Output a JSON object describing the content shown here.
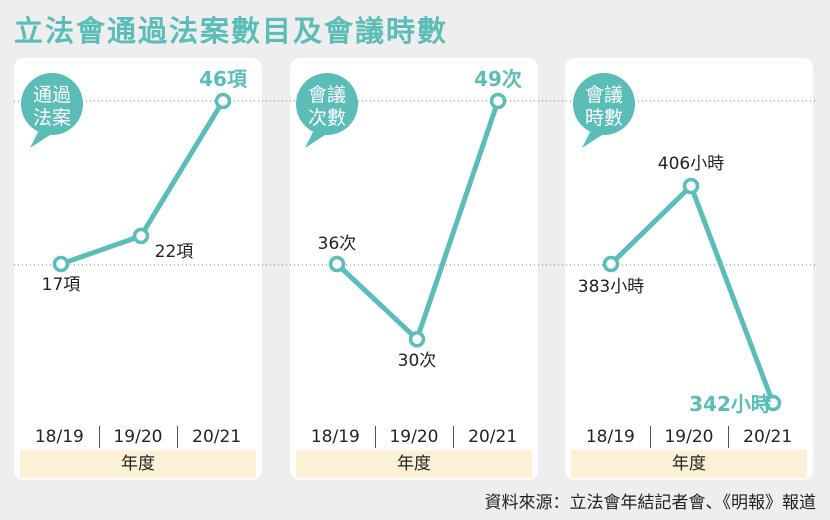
{
  "title": "立法會通過法案數目及會議時數",
  "source": "資料來源：立法會年結記者會、《明報》報道",
  "colors": {
    "accent": "#5bbdb8",
    "panel": "#ffffff",
    "background": "#eeeeee",
    "axis_band": "#fcf1d4"
  },
  "chart_data": [
    {
      "type": "line",
      "badge": [
        "通過",
        "法案"
      ],
      "categories": [
        "18/19",
        "19/20",
        "20/21"
      ],
      "values": [
        17,
        22,
        46
      ],
      "point_labels": [
        "17項",
        "22項",
        "46項"
      ],
      "xlabel": "年度",
      "ylabel": ""
    },
    {
      "type": "line",
      "badge": [
        "會議",
        "次數"
      ],
      "categories": [
        "18/19",
        "19/20",
        "20/21"
      ],
      "values": [
        36,
        30,
        49
      ],
      "point_labels": [
        "36次",
        "30次",
        "49次"
      ],
      "xlabel": "年度",
      "ylabel": ""
    },
    {
      "type": "line",
      "badge": [
        "會議",
        "時數"
      ],
      "categories": [
        "18/19",
        "19/20",
        "20/21"
      ],
      "values": [
        383,
        406,
        342
      ],
      "point_labels": [
        "383小時",
        "406小時",
        "342小時"
      ],
      "xlabel": "年度",
      "ylabel": ""
    }
  ]
}
